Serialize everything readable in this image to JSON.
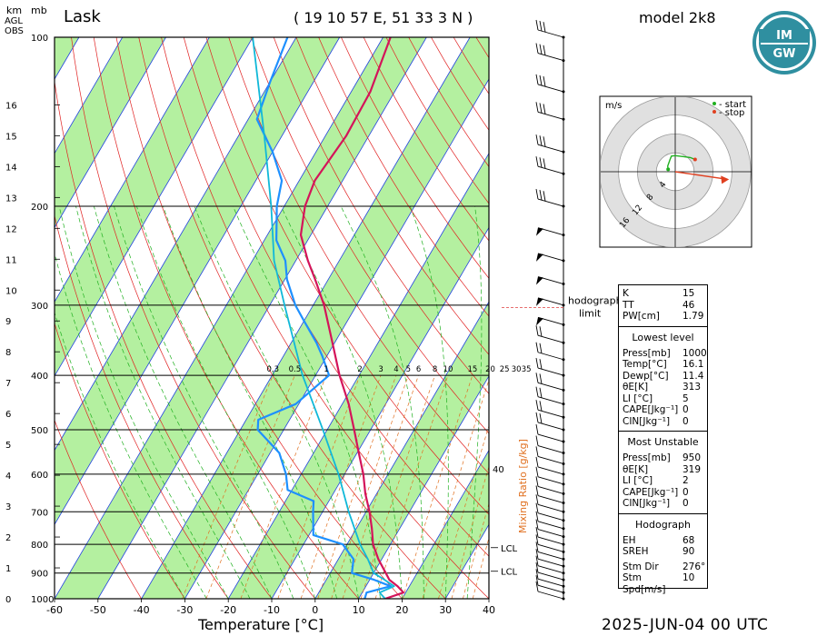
{
  "header": {
    "station": "Lask",
    "coordinates": "( 19 10 57 E, 51 33 3 N )",
    "model": "model 2k8",
    "datetime": "2025-JUN-04   00 UTC"
  },
  "axis_labels": {
    "km": "km",
    "mb": "mb",
    "agl": [
      "AGL",
      "OBS"
    ],
    "x": "Temperature [°C]",
    "mixing_ratio": "Mixing Ratio [g/kg]"
  },
  "hodograph": {
    "unit": "m/s",
    "legend_start": "- start",
    "legend_stop": "- stop",
    "ring_labels": [
      "4",
      "8",
      "12",
      "16"
    ],
    "limit_label_1": "hodograph",
    "limit_label_2": "limit",
    "trace_ms": [
      [
        -1.5,
        0.5
      ],
      [
        -1.6,
        1.2
      ],
      [
        -1.1,
        2.6
      ],
      [
        -0.8,
        3.3
      ],
      [
        0,
        3.4
      ],
      [
        0.8,
        3.3
      ],
      [
        1.8,
        3.2
      ],
      [
        3.2,
        3.0
      ],
      [
        4.2,
        2.6
      ]
    ],
    "shear_arrow_ms": [
      [
        0,
        0
      ],
      [
        11,
        -1.6
      ]
    ]
  },
  "lcl_labels": [
    "LCL",
    "LCL"
  ],
  "mixing_ratio_values": [
    "0.3",
    "0.5",
    "1",
    "2",
    "3",
    "4",
    "5",
    "6",
    "8",
    "10",
    "15",
    "20",
    "25",
    "30",
    "35",
    "40"
  ],
  "indices": {
    "top": [
      [
        "K",
        "15"
      ],
      [
        "TT",
        "46"
      ],
      [
        "PW[cm]",
        "1.79"
      ]
    ],
    "lowest_title": "Lowest level",
    "lowest": [
      [
        "Press[mb]",
        "1000"
      ],
      [
        "Temp[°C]",
        "16.1"
      ],
      [
        "Dewp[°C]",
        "11.4"
      ],
      [
        "θE[K]",
        "313"
      ],
      [
        "LI [°C]",
        "5"
      ],
      [
        "CAPE[Jkg⁻¹]",
        "0"
      ],
      [
        "CIN[Jkg⁻¹]",
        "0"
      ]
    ],
    "mu_title": "Most Unstable",
    "mu": [
      [
        "Press[mb]",
        "950"
      ],
      [
        "θE[K]",
        "319"
      ],
      [
        "LI [°C]",
        "2"
      ],
      [
        "CAPE[Jkg⁻¹]",
        "0"
      ],
      [
        "CIN[Jkg⁻¹]",
        "0"
      ]
    ],
    "hodo_title": "Hodograph",
    "hodo": [
      [
        "EH",
        "68"
      ],
      [
        "SREH",
        "90"
      ]
    ],
    "hodo2": [
      [
        "Stm Dir",
        "276°"
      ],
      [
        "Stm Spd[m/s]",
        "10"
      ]
    ]
  },
  "colors": {
    "temperature": "#d4145a",
    "dewpoint": "#1e90ff",
    "parcel": "#10b8d8",
    "isotherm_band": "#b4f0a0",
    "isotherm": "#2040e0",
    "dry_adiabat": "#e02020",
    "moist_adiabat": "#20b020",
    "mixing_ratio": "#e07020"
  },
  "chart_data": {
    "type": "line",
    "title": "Lask",
    "xlabel": "Temperature [°C]",
    "ylabel": "mb",
    "x_ticks": [
      -60,
      -50,
      -40,
      -30,
      -20,
      -10,
      0,
      10,
      20,
      30,
      40
    ],
    "isobars": [
      1000,
      900,
      800,
      700,
      600,
      500,
      400,
      300,
      200,
      100
    ],
    "height_km": [
      0,
      1,
      2,
      3,
      4,
      5,
      6,
      7,
      8,
      9,
      10,
      11,
      12,
      13,
      14,
      15,
      16
    ],
    "xlim": [
      -60,
      40
    ],
    "ylim": [
      1000,
      100
    ],
    "series": [
      {
        "name": "temperature",
        "points": [
          [
            1000,
            16.1
          ],
          [
            975,
            19.5
          ],
          [
            950,
            17.3
          ],
          [
            925,
            14.5
          ],
          [
            900,
            12.8
          ],
          [
            850,
            9.2
          ],
          [
            800,
            6
          ],
          [
            750,
            3.6
          ],
          [
            700,
            0.8
          ],
          [
            650,
            -2.6
          ],
          [
            600,
            -5.7
          ],
          [
            550,
            -9.6
          ],
          [
            500,
            -13.8
          ],
          [
            450,
            -18.5
          ],
          [
            400,
            -24.5
          ],
          [
            350,
            -30.5
          ],
          [
            300,
            -37.5
          ],
          [
            270,
            -43
          ],
          [
            250,
            -47.2
          ],
          [
            225,
            -52.3
          ],
          [
            200,
            -55.2
          ],
          [
            180,
            -56.4
          ],
          [
            150,
            -55.2
          ],
          [
            125,
            -55.6
          ],
          [
            100,
            -58.3
          ]
        ]
      },
      {
        "name": "dewpoint",
        "points": [
          [
            1000,
            11.4
          ],
          [
            975,
            11
          ],
          [
            950,
            15.7
          ],
          [
            925,
            11
          ],
          [
            900,
            5
          ],
          [
            850,
            3.5
          ],
          [
            800,
            -1
          ],
          [
            770,
            -9
          ],
          [
            700,
            -12.2
          ],
          [
            670,
            -13.5
          ],
          [
            640,
            -21
          ],
          [
            600,
            -23.5
          ],
          [
            550,
            -27.9
          ],
          [
            500,
            -36
          ],
          [
            480,
            -37.2
          ],
          [
            450,
            -30.7
          ],
          [
            400,
            -26.9
          ],
          [
            370,
            -31
          ],
          [
            350,
            -34.2
          ],
          [
            320,
            -40
          ],
          [
            300,
            -44.1
          ],
          [
            270,
            -49.5
          ],
          [
            250,
            -52.4
          ],
          [
            230,
            -57.2
          ],
          [
            200,
            -61.7
          ],
          [
            180,
            -64
          ],
          [
            160,
            -70
          ],
          [
            140,
            -78
          ],
          [
            120,
            -80
          ],
          [
            100,
            -82
          ]
        ]
      },
      {
        "name": "parcel",
        "points": [
          [
            1000,
            16.1
          ],
          [
            975,
            14
          ],
          [
            950,
            16.5
          ],
          [
            925,
            13.4
          ],
          [
            900,
            10
          ],
          [
            850,
            6.8
          ],
          [
            800,
            3
          ],
          [
            700,
            -4
          ],
          [
            600,
            -11.4
          ],
          [
            500,
            -21
          ],
          [
            400,
            -33
          ],
          [
            300,
            -46.6
          ],
          [
            250,
            -55
          ],
          [
            200,
            -63
          ],
          [
            150,
            -74
          ],
          [
            100,
            -90
          ]
        ]
      }
    ]
  }
}
